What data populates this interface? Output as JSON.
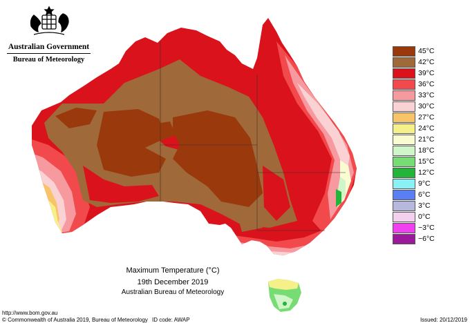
{
  "header": {
    "government": "Australian Government",
    "bureau": "Bureau of Meteorology"
  },
  "caption": {
    "title": "Maximum Temperature (°C)",
    "date": "19th December 2019",
    "organisation": "Australian Bureau of Meteorology"
  },
  "legend": [
    {
      "label": "45°C",
      "color": "#9a3a0c"
    },
    {
      "label": "42°C",
      "color": "#a0693a"
    },
    {
      "label": "39°C",
      "color": "#d9121b"
    },
    {
      "label": "36°C",
      "color": "#f2494d"
    },
    {
      "label": "33°C",
      "color": "#f79aa0"
    },
    {
      "label": "30°C",
      "color": "#fbd2d3"
    },
    {
      "label": "27°C",
      "color": "#f7c46a"
    },
    {
      "label": "24°C",
      "color": "#f6f08a"
    },
    {
      "label": "21°C",
      "color": "#fbfbd2"
    },
    {
      "label": "18°C",
      "color": "#d0f5c8"
    },
    {
      "label": "15°C",
      "color": "#77dc74"
    },
    {
      "label": "12°C",
      "color": "#24b43a"
    },
    {
      "label": "9°C",
      "color": "#8af1f4"
    },
    {
      "label": "6°C",
      "color": "#5a7ff5"
    },
    {
      "label": "3°C",
      "color": "#b7b8de"
    },
    {
      "label": "0°C",
      "color": "#f2d0ee"
    },
    {
      "label": "−3°C",
      "color": "#f040f0"
    },
    {
      "label": "−6°C",
      "color": "#9b1a9b"
    }
  ],
  "footer": {
    "url": "http://www.bom.gov.au",
    "copyright": "© Commonwealth of Australia 2019, Bureau of Meteorology",
    "id_code": "ID code: AWAP",
    "issued": "Issued: 20/12/2019"
  }
}
